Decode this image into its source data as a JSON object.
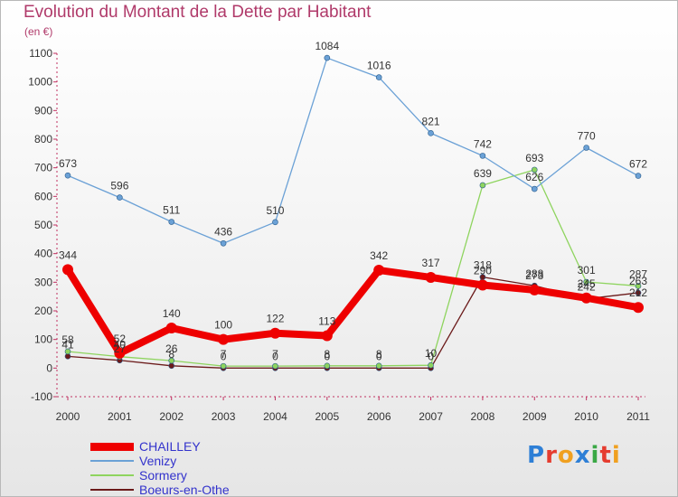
{
  "header": {
    "title": "Evolution du Montant de la Dette par Habitant",
    "unit": "(en €)"
  },
  "logo": {
    "text": "Proxiti"
  },
  "chart_data": {
    "type": "line",
    "title": "Evolution du Montant de la Dette par Habitant",
    "subtitle": "(en €)",
    "x": [
      "2000",
      "2001",
      "2002",
      "2003",
      "2004",
      "2005",
      "2006",
      "2007",
      "2008",
      "2009",
      "2010",
      "2011"
    ],
    "ylim": [
      -100,
      1100
    ],
    "yticks": [
      "-100",
      "0",
      "100",
      "200",
      "300",
      "400",
      "500",
      "600",
      "700",
      "800",
      "900",
      "1000",
      "1100"
    ],
    "grid": false,
    "legend_position": "bottom-left",
    "series": [
      {
        "name": "Boeurs-en-Othe",
        "color": "#6b1a1a",
        "lineWidth": 1.3,
        "markerRadius": 3,
        "values": [
          41,
          27,
          8,
          0,
          0,
          0,
          0,
          0,
          318,
          288,
          242,
          263
        ],
        "labels": [
          "41",
          "27",
          "8",
          "0",
          "0",
          "0",
          "0",
          "0",
          "318",
          "288",
          "242",
          "263"
        ]
      },
      {
        "name": "Sormery",
        "color": "#8ed45e",
        "lineWidth": 1.3,
        "markerRadius": 3,
        "values": [
          58,
          40,
          26,
          7,
          7,
          8,
          8,
          10,
          639,
          693,
          301,
          287
        ],
        "labels": [
          "58",
          "40",
          "26",
          "7",
          "7",
          "8",
          "8",
          "10",
          "639",
          "693",
          "301",
          "287"
        ]
      },
      {
        "name": "Venizy",
        "color": "#6ba1d6",
        "lineWidth": 1.3,
        "markerRadius": 3,
        "values": [
          673,
          596,
          511,
          436,
          510,
          1084,
          1016,
          821,
          742,
          626,
          770,
          672
        ],
        "labels": [
          "673",
          "596",
          "511",
          "436",
          "510",
          "1084",
          "1016",
          "821",
          "742",
          "626",
          "770",
          "672"
        ]
      },
      {
        "name": "CHAILLEY",
        "color": "#ee0000",
        "lineWidth": 8,
        "markerRadius": 6,
        "values": [
          344,
          52,
          140,
          100,
          122,
          113,
          342,
          317,
          290,
          273,
          245,
          212
        ],
        "labels": [
          "344",
          "52",
          "140",
          "100",
          "122",
          "113",
          "342",
          "317",
          "290",
          "273",
          "245",
          "212"
        ]
      }
    ],
    "legend": [
      {
        "name": "CHAILLEY",
        "color": "#ee0000",
        "thickness": 9
      },
      {
        "name": "Venizy",
        "color": "#6ba1d6",
        "thickness": 2
      },
      {
        "name": "Sormery",
        "color": "#8ed45e",
        "thickness": 2
      },
      {
        "name": "Boeurs-en-Othe",
        "color": "#6b1a1a",
        "thickness": 2
      }
    ]
  }
}
